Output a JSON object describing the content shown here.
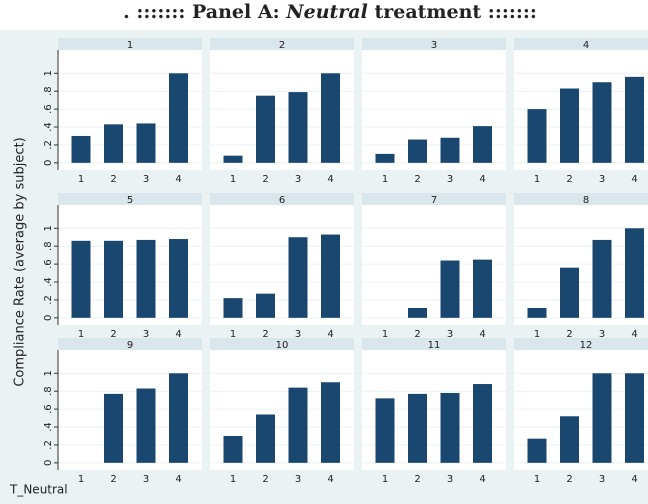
{
  "title_parts": [
    ". ::::::: Panel A: ",
    "Neutral",
    " treatment :::::::"
  ],
  "y_axis_label": "Compliance Rate (average by subject)",
  "footer": "T_Neutral",
  "chart_data": [
    {
      "type": "bar",
      "title": "1",
      "categories": [
        "1",
        "2",
        "3",
        "4"
      ],
      "values": [
        0.3,
        0.43,
        0.44,
        1.0
      ],
      "color": "#1a476f",
      "ylim": [
        -0.08,
        1.26
      ],
      "yticks": [
        0,
        {
          "value": 0.2,
          "label": ".2"
        },
        {
          "value": 0.4,
          "label": ".4"
        },
        {
          "value": 0.6,
          "label": ".6"
        },
        {
          "value": 0.8,
          "label": ".8"
        },
        1
      ],
      "grid": true
    },
    {
      "type": "bar",
      "title": "2",
      "categories": [
        "1",
        "2",
        "3",
        "4"
      ],
      "values": [
        0.08,
        0.75,
        0.79,
        1.0
      ],
      "color": "#1a476f",
      "ylim": [
        -0.08,
        1.26
      ],
      "yticks": [
        0,
        {
          "value": 0.2,
          "label": ".2"
        },
        {
          "value": 0.4,
          "label": ".4"
        },
        {
          "value": 0.6,
          "label": ".6"
        },
        {
          "value": 0.8,
          "label": ".8"
        },
        1
      ],
      "grid": true
    },
    {
      "type": "bar",
      "title": "3",
      "categories": [
        "1",
        "2",
        "3",
        "4"
      ],
      "values": [
        0.1,
        0.26,
        0.28,
        0.41
      ],
      "color": "#1a476f",
      "ylim": [
        -0.08,
        1.26
      ],
      "yticks": [
        0,
        {
          "value": 0.2,
          "label": ".2"
        },
        {
          "value": 0.4,
          "label": ".4"
        },
        {
          "value": 0.6,
          "label": ".6"
        },
        {
          "value": 0.8,
          "label": ".8"
        },
        1
      ],
      "grid": true
    },
    {
      "type": "bar",
      "title": "4",
      "categories": [
        "1",
        "2",
        "3",
        "4"
      ],
      "values": [
        0.6,
        0.83,
        0.9,
        0.96
      ],
      "color": "#1a476f",
      "ylim": [
        -0.08,
        1.26
      ],
      "yticks": [
        0,
        {
          "value": 0.2,
          "label": ".2"
        },
        {
          "value": 0.4,
          "label": ".4"
        },
        {
          "value": 0.6,
          "label": ".6"
        },
        {
          "value": 0.8,
          "label": ".8"
        },
        1
      ],
      "grid": true
    },
    {
      "type": "bar",
      "title": "5",
      "categories": [
        "1",
        "2",
        "3",
        "4"
      ],
      "values": [
        0.86,
        0.86,
        0.87,
        0.88
      ],
      "color": "#1a476f",
      "ylim": [
        -0.08,
        1.26
      ],
      "yticks": [
        0,
        {
          "value": 0.2,
          "label": ".2"
        },
        {
          "value": 0.4,
          "label": ".4"
        },
        {
          "value": 0.6,
          "label": ".6"
        },
        {
          "value": 0.8,
          "label": ".8"
        },
        1
      ],
      "grid": true
    },
    {
      "type": "bar",
      "title": "6",
      "categories": [
        "1",
        "2",
        "3",
        "4"
      ],
      "values": [
        0.22,
        0.27,
        0.9,
        0.93
      ],
      "color": "#1a476f",
      "ylim": [
        -0.08,
        1.26
      ],
      "yticks": [
        0,
        {
          "value": 0.2,
          "label": ".2"
        },
        {
          "value": 0.4,
          "label": ".4"
        },
        {
          "value": 0.6,
          "label": ".6"
        },
        {
          "value": 0.8,
          "label": ".8"
        },
        1
      ],
      "grid": true
    },
    {
      "type": "bar",
      "title": "7",
      "categories": [
        "1",
        "2",
        "3",
        "4"
      ],
      "values": [
        0,
        0.11,
        0.64,
        0.65
      ],
      "color": "#1a476f",
      "ylim": [
        -0.08,
        1.26
      ],
      "yticks": [
        0,
        {
          "value": 0.2,
          "label": ".2"
        },
        {
          "value": 0.4,
          "label": ".4"
        },
        {
          "value": 0.6,
          "label": ".6"
        },
        {
          "value": 0.8,
          "label": ".8"
        },
        1
      ],
      "grid": true
    },
    {
      "type": "bar",
      "title": "8",
      "categories": [
        "1",
        "2",
        "3",
        "4"
      ],
      "values": [
        0.11,
        0.56,
        0.87,
        1.0
      ],
      "color": "#1a476f",
      "ylim": [
        -0.08,
        1.26
      ],
      "yticks": [
        0,
        {
          "value": 0.2,
          "label": ".2"
        },
        {
          "value": 0.4,
          "label": ".4"
        },
        {
          "value": 0.6,
          "label": ".6"
        },
        {
          "value": 0.8,
          "label": ".8"
        },
        1
      ],
      "grid": true
    },
    {
      "type": "bar",
      "title": "9",
      "categories": [
        "1",
        "2",
        "3",
        "4"
      ],
      "values": [
        0,
        0.77,
        0.83,
        1.0
      ],
      "color": "#1a476f",
      "ylim": [
        -0.08,
        1.26
      ],
      "yticks": [
        0,
        {
          "value": 0.2,
          "label": ".2"
        },
        {
          "value": 0.4,
          "label": ".4"
        },
        {
          "value": 0.6,
          "label": ".6"
        },
        {
          "value": 0.8,
          "label": ".8"
        },
        1
      ],
      "grid": true
    },
    {
      "type": "bar",
      "title": "10",
      "categories": [
        "1",
        "2",
        "3",
        "4"
      ],
      "values": [
        0.3,
        0.54,
        0.84,
        0.9
      ],
      "color": "#1a476f",
      "ylim": [
        -0.08,
        1.26
      ],
      "yticks": [
        0,
        {
          "value": 0.2,
          "label": ".2"
        },
        {
          "value": 0.4,
          "label": ".4"
        },
        {
          "value": 0.6,
          "label": ".6"
        },
        {
          "value": 0.8,
          "label": ".8"
        },
        1
      ],
      "grid": true
    },
    {
      "type": "bar",
      "title": "11",
      "categories": [
        "1",
        "2",
        "3",
        "4"
      ],
      "values": [
        0.72,
        0.77,
        0.78,
        0.88
      ],
      "color": "#1a476f",
      "ylim": [
        -0.08,
        1.26
      ],
      "yticks": [
        0,
        {
          "value": 0.2,
          "label": ".2"
        },
        {
          "value": 0.4,
          "label": ".4"
        },
        {
          "value": 0.6,
          "label": ".6"
        },
        {
          "value": 0.8,
          "label": ".8"
        },
        1
      ],
      "grid": true
    },
    {
      "type": "bar",
      "title": "12",
      "categories": [
        "1",
        "2",
        "3",
        "4"
      ],
      "values": [
        0.27,
        0.52,
        1.0,
        1.0
      ],
      "color": "#1a476f",
      "ylim": [
        -0.08,
        1.26
      ],
      "yticks": [
        0,
        {
          "value": 0.2,
          "label": ".2"
        },
        {
          "value": 0.4,
          "label": ".4"
        },
        {
          "value": 0.6,
          "label": ".6"
        },
        {
          "value": 0.8,
          "label": ".8"
        },
        1
      ],
      "grid": true
    }
  ]
}
